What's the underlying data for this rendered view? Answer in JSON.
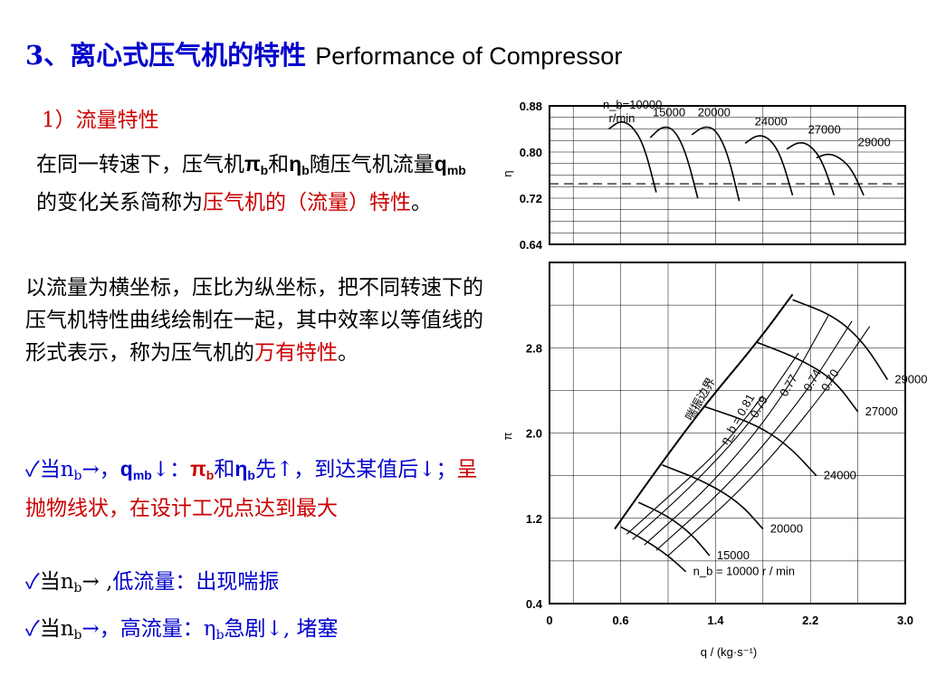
{
  "title": {
    "cn": "3、离心式压气机的特性",
    "en": "Performance of Compressor"
  },
  "subtitle": "1）流量特性",
  "para1": {
    "a": "在同一转速下，压气机",
    "pi": "π",
    "he": "和",
    "eta": "η",
    "sub_b": "b",
    "b": "随压气机流量",
    "q": "q",
    "sub_mb": "mb",
    "c": "的变化关系简称为",
    "hl": "压气机的（流量）特性",
    "d": "。"
  },
  "para2": {
    "a": "以流量为横坐标，压比为纵坐标，把不同转速下的压气机特性曲线绘制在一起，其中效率以等值线的形式表示，称为压气机的",
    "hl": "万有特性",
    "d": "。"
  },
  "bullets": [
    {
      "check": "✓",
      "a": "当n",
      "sub": "b",
      "b": "→，",
      "q": "q",
      "qsub": "mb",
      "c": "↓：",
      "pi": "π",
      "pisub": "b",
      "he": "和",
      "eta": "η",
      "etasub": "b",
      "d": "先↑，到达某值后↓；",
      "red": "呈抛物线状，在设计工况点达到最大"
    },
    {
      "check": "✓",
      "a": "当n",
      "sub": "b",
      "b": "→ ,",
      "c": "低流量：出现喘振"
    },
    {
      "check": "✓",
      "a": "当n",
      "sub": "b",
      "b": "→，高流量：η",
      "etasub": "b",
      "c": "急剧↓, 堵塞"
    }
  ],
  "chart_data": [
    {
      "type": "line",
      "ylabel": "η_b",
      "xlim": [
        0,
        3.0
      ],
      "ylim": [
        0.64,
        0.88
      ],
      "yticks": [
        "0.64",
        "0.72",
        "0.80",
        "0.88"
      ],
      "speed_label_unit": "r/min",
      "series": [
        {
          "name": "n_b=10000",
          "x": [
            0.5,
            0.6,
            0.7,
            0.8,
            0.9
          ],
          "y": [
            0.84,
            0.855,
            0.845,
            0.81,
            0.73
          ]
        },
        {
          "name": "15000",
          "x": [
            0.85,
            0.95,
            1.05,
            1.15,
            1.25
          ],
          "y": [
            0.825,
            0.845,
            0.84,
            0.8,
            0.72
          ]
        },
        {
          "name": "20000",
          "x": [
            1.2,
            1.3,
            1.4,
            1.5,
            1.6
          ],
          "y": [
            0.83,
            0.845,
            0.84,
            0.8,
            0.715
          ]
        },
        {
          "name": "24000",
          "x": [
            1.65,
            1.75,
            1.85,
            1.95,
            2.05
          ],
          "y": [
            0.815,
            0.83,
            0.825,
            0.795,
            0.725
          ]
        },
        {
          "name": "27000",
          "x": [
            2.0,
            2.1,
            2.2,
            2.3,
            2.4
          ],
          "y": [
            0.805,
            0.818,
            0.812,
            0.785,
            0.725
          ]
        },
        {
          "name": "29000",
          "x": [
            2.25,
            2.35,
            2.45,
            2.55,
            2.65
          ],
          "y": [
            0.79,
            0.798,
            0.79,
            0.77,
            0.725
          ]
        }
      ]
    },
    {
      "type": "line",
      "xlabel": "q_mb / (kg·s⁻¹)",
      "ylabel": "π_b",
      "xlim": [
        0,
        3.0
      ],
      "ylim": [
        0.4,
        3.6
      ],
      "xticks": [
        "0",
        "0.6",
        "1.4",
        "2.2",
        "3.0"
      ],
      "yticks": [
        "0.4",
        "1.2",
        "2.0",
        "2.8"
      ],
      "surge_line_label": "喘振边界",
      "speed_lines": [
        {
          "name": "n_b = 10000 r / min",
          "x": [
            0.6,
            0.8,
            1.0,
            1.15
          ],
          "y": [
            1.12,
            1.0,
            0.85,
            0.7
          ]
        },
        {
          "name": "15000",
          "x": [
            0.75,
            1.0,
            1.2,
            1.35
          ],
          "y": [
            1.35,
            1.22,
            1.05,
            0.85
          ]
        },
        {
          "name": "20000",
          "x": [
            0.95,
            1.3,
            1.6,
            1.8
          ],
          "y": [
            1.7,
            1.55,
            1.35,
            1.1
          ]
        },
        {
          "name": "24000",
          "x": [
            1.3,
            1.7,
            2.0,
            2.25
          ],
          "y": [
            2.25,
            2.1,
            1.9,
            1.6
          ]
        },
        {
          "name": "27000",
          "x": [
            1.75,
            2.1,
            2.4,
            2.6
          ],
          "y": [
            2.85,
            2.7,
            2.5,
            2.2
          ]
        },
        {
          "name": "29000",
          "x": [
            2.05,
            2.4,
            2.65,
            2.85
          ],
          "y": [
            3.25,
            3.1,
            2.85,
            2.5
          ]
        }
      ],
      "surge_line": {
        "x": [
          0.55,
          0.9,
          1.3,
          1.75,
          2.05
        ],
        "y": [
          1.1,
          1.65,
          2.25,
          2.85,
          3.3
        ]
      },
      "efficiency_contours": [
        {
          "name": "η_b = 0.81",
          "x": [
            0.65,
            1.0,
            1.45,
            1.8
          ],
          "y": [
            1.05,
            1.4,
            1.85,
            2.35
          ]
        },
        {
          "name": "0.79",
          "x": [
            0.7,
            1.2,
            1.7,
            2.1
          ],
          "y": [
            1.0,
            1.5,
            2.1,
            2.75
          ]
        },
        {
          "name": "0.77",
          "x": [
            0.8,
            1.4,
            1.95,
            2.35
          ],
          "y": [
            0.95,
            1.55,
            2.3,
            3.1
          ]
        },
        {
          "name": "0.74",
          "x": [
            0.9,
            1.55,
            2.15,
            2.55
          ],
          "y": [
            0.9,
            1.55,
            2.35,
            3.05
          ]
        },
        {
          "name": "0.70",
          "x": [
            1.0,
            1.7,
            2.3,
            2.7
          ],
          "y": [
            0.85,
            1.55,
            2.35,
            3.0
          ]
        }
      ]
    }
  ]
}
